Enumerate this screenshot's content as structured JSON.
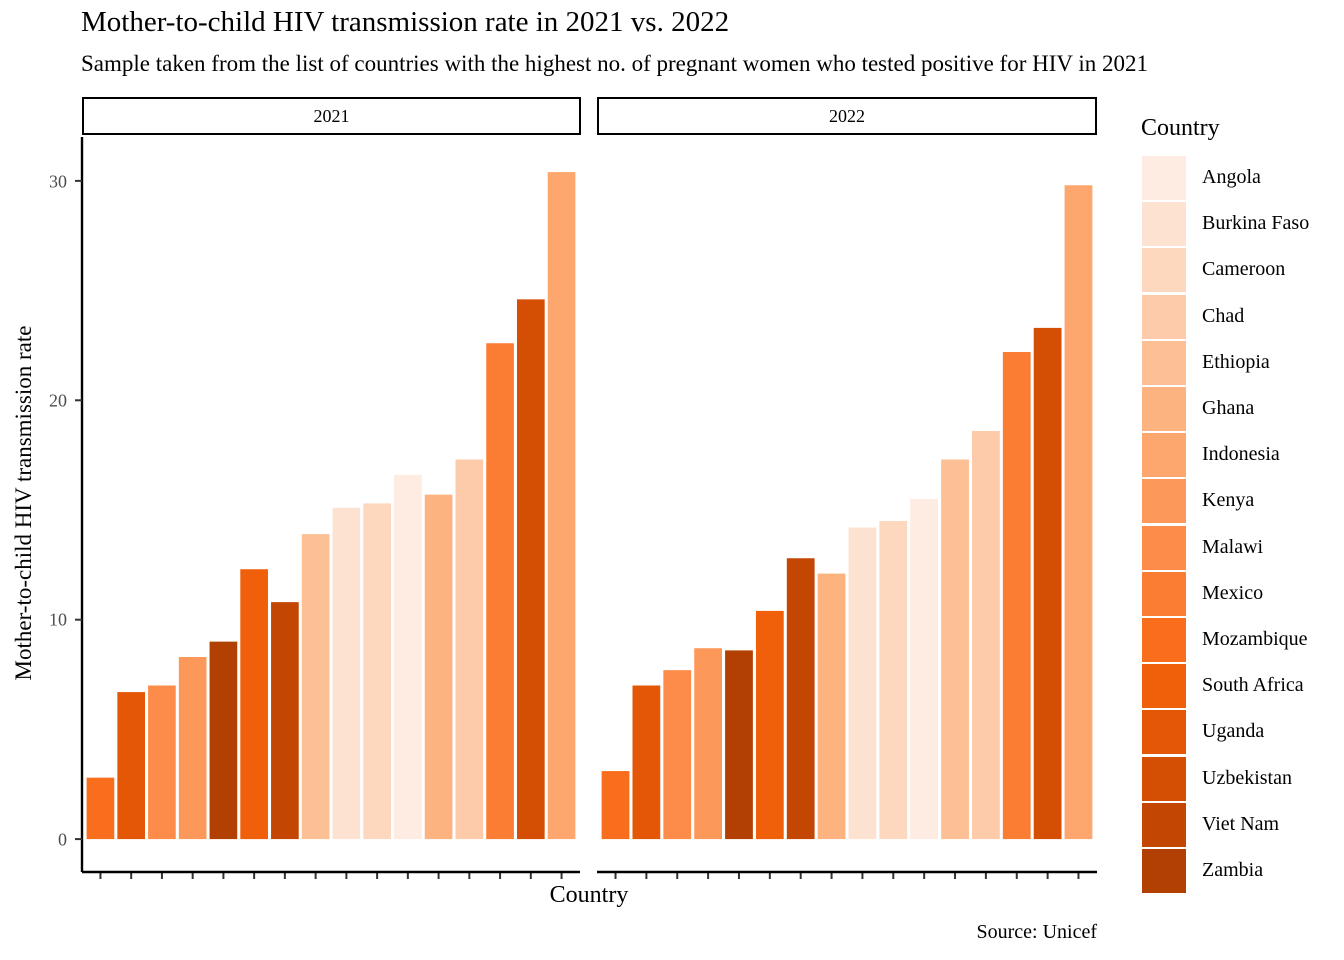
{
  "chart_data": {
    "type": "bar",
    "title": "Mother-to-child HIV transmission rate in 2021 vs. 2022",
    "subtitle": "Sample taken from the list of countries with the highest no. of pregnant women who tested positive for HIV in 2021",
    "xlabel": "Country",
    "ylabel": "Mother-to-child HIV transmission rate",
    "caption": "Source: Unicef",
    "ylim": [
      -1.5,
      32
    ],
    "yticks": [
      0,
      10,
      20,
      30
    ],
    "grid": false,
    "legend_position": "right",
    "legend_title": "Country",
    "countries": [
      "Angola",
      "Burkina Faso",
      "Cameroon",
      "Chad",
      "Ethiopia",
      "Ghana",
      "Indonesia",
      "Kenya",
      "Malawi",
      "Mexico",
      "Mozambique",
      "South Africa",
      "Uganda",
      "Uzbekistan",
      "Viet Nam",
      "Zambia"
    ],
    "colors": {
      "Angola": "#FEEBE1",
      "Burkina Faso": "#FDE2D2",
      "Cameroon": "#FDD7BE",
      "Chad": "#FDCBA9",
      "Ethiopia": "#FDBF94",
      "Ghana": "#FDB380",
      "Indonesia": "#FDA66D",
      "Kenya": "#FD985B",
      "Malawi": "#FD8B49",
      "Mexico": "#FB7D34",
      "Mozambique": "#F96E1C",
      "South Africa": "#F05F0A",
      "Uganda": "#E35706",
      "Uzbekistan": "#D44E03",
      "Viet Nam": "#C34603",
      "Zambia": "#B34003"
    },
    "panels": [
      {
        "label": "2021",
        "bars": [
          {
            "country": "Mozambique",
            "value": 2.8
          },
          {
            "country": "Uganda",
            "value": 6.7
          },
          {
            "country": "Malawi",
            "value": 7.0
          },
          {
            "country": "Kenya",
            "value": 8.3
          },
          {
            "country": "Zambia",
            "value": 9.0
          },
          {
            "country": "South Africa",
            "value": 12.3
          },
          {
            "country": "Viet Nam",
            "value": 10.8
          },
          {
            "country": "Ethiopia",
            "value": 13.9
          },
          {
            "country": "Burkina Faso",
            "value": 15.1
          },
          {
            "country": "Cameroon",
            "value": 15.3
          },
          {
            "country": "Angola",
            "value": 16.6
          },
          {
            "country": "Ghana",
            "value": 15.7
          },
          {
            "country": "Chad",
            "value": 17.3
          },
          {
            "country": "Mexico",
            "value": 22.6
          },
          {
            "country": "Uzbekistan",
            "value": 24.6
          },
          {
            "country": "Indonesia",
            "value": 30.4
          }
        ]
      },
      {
        "label": "2022",
        "bars": [
          {
            "country": "Mozambique",
            "value": 3.1
          },
          {
            "country": "Uganda",
            "value": 7.0
          },
          {
            "country": "Malawi",
            "value": 7.7
          },
          {
            "country": "Kenya",
            "value": 8.7
          },
          {
            "country": "Zambia",
            "value": 8.6
          },
          {
            "country": "South Africa",
            "value": 10.4
          },
          {
            "country": "Viet Nam",
            "value": 12.8
          },
          {
            "country": "Ghana",
            "value": 12.1
          },
          {
            "country": "Burkina Faso",
            "value": 14.2
          },
          {
            "country": "Cameroon",
            "value": 14.5
          },
          {
            "country": "Angola",
            "value": 15.5
          },
          {
            "country": "Ethiopia",
            "value": 17.3
          },
          {
            "country": "Chad",
            "value": 18.6
          },
          {
            "country": "Mexico",
            "value": 22.2
          },
          {
            "country": "Uzbekistan",
            "value": 23.3
          },
          {
            "country": "Indonesia",
            "value": 29.8
          }
        ]
      }
    ]
  }
}
